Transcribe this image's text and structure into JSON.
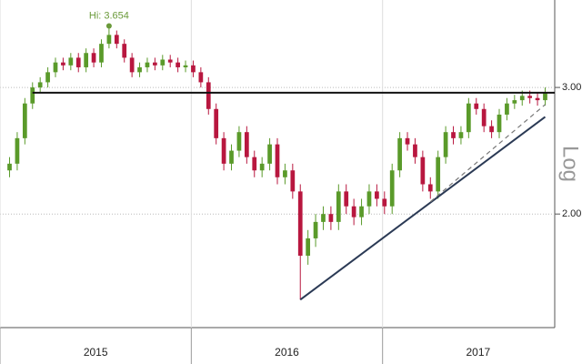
{
  "chart_data": {
    "type": "candlestick",
    "log_scale": true,
    "grid": true,
    "axis_label": "Log",
    "up_color": "#5a9a2a",
    "down_color": "#b8173f",
    "x": [
      2015.05,
      2015.09,
      2015.13,
      2015.17,
      2015.21,
      2015.25,
      2015.29,
      2015.33,
      2015.37,
      2015.41,
      2015.45,
      2015.49,
      2015.53,
      2015.57,
      2015.61,
      2015.65,
      2015.69,
      2015.73,
      2015.77,
      2015.81,
      2015.85,
      2015.89,
      2015.93,
      2015.97,
      2016.01,
      2016.05,
      2016.09,
      2016.13,
      2016.17,
      2016.21,
      2016.25,
      2016.29,
      2016.33,
      2016.37,
      2016.41,
      2016.45,
      2016.49,
      2016.53,
      2016.57,
      2016.61,
      2016.65,
      2016.69,
      2016.73,
      2016.77,
      2016.81,
      2016.85,
      2016.89,
      2016.93,
      2016.97,
      2017.01,
      2017.05,
      2017.09,
      2017.13,
      2017.17,
      2017.21,
      2017.25,
      2017.29,
      2017.33,
      2017.37,
      2017.41,
      2017.45,
      2017.49,
      2017.53,
      2017.57,
      2017.61,
      2017.65,
      2017.69,
      2017.73,
      2017.77,
      2017.81,
      2017.85
    ],
    "open": [
      2.3,
      2.35,
      2.55,
      2.85,
      3.0,
      3.05,
      3.15,
      3.25,
      3.22,
      3.3,
      3.2,
      3.35,
      3.25,
      3.45,
      3.55,
      3.45,
      3.3,
      3.15,
      3.2,
      3.25,
      3.22,
      3.28,
      3.25,
      3.2,
      3.22,
      3.15,
      3.05,
      2.8,
      2.55,
      2.35,
      2.45,
      2.6,
      2.4,
      2.3,
      2.35,
      2.5,
      2.25,
      2.3,
      2.15,
      1.75,
      1.85,
      1.95,
      2.0,
      1.95,
      2.15,
      2.05,
      1.98,
      2.05,
      2.15,
      2.1,
      2.05,
      2.3,
      2.55,
      2.5,
      2.4,
      2.2,
      2.15,
      2.4,
      2.6,
      2.55,
      2.6,
      2.85,
      2.8,
      2.65,
      2.6,
      2.75,
      2.85,
      2.88,
      2.92,
      2.9,
      2.88
    ],
    "high": [
      2.4,
      2.6,
      2.9,
      3.05,
      3.1,
      3.2,
      3.3,
      3.3,
      3.35,
      3.35,
      3.4,
      3.4,
      3.5,
      3.654,
      3.6,
      3.5,
      3.35,
      3.25,
      3.3,
      3.3,
      3.33,
      3.33,
      3.3,
      3.27,
      3.27,
      3.2,
      3.1,
      2.85,
      2.6,
      2.5,
      2.65,
      2.65,
      2.45,
      2.4,
      2.55,
      2.55,
      2.35,
      2.35,
      2.2,
      1.9,
      2.0,
      2.05,
      2.05,
      2.2,
      2.2,
      2.1,
      2.1,
      2.2,
      2.2,
      2.15,
      2.35,
      2.6,
      2.6,
      2.55,
      2.45,
      2.25,
      2.45,
      2.65,
      2.65,
      2.65,
      2.9,
      2.9,
      2.85,
      2.7,
      2.8,
      2.9,
      2.93,
      2.97,
      2.97,
      2.95,
      3.0
    ],
    "low": [
      2.25,
      2.3,
      2.5,
      2.8,
      2.95,
      3.0,
      3.1,
      3.17,
      3.17,
      3.15,
      3.15,
      3.2,
      3.2,
      3.4,
      3.4,
      3.25,
      3.1,
      3.1,
      3.15,
      3.17,
      3.17,
      3.2,
      3.15,
      3.15,
      3.1,
      3.0,
      2.75,
      2.5,
      2.3,
      2.3,
      2.4,
      2.35,
      2.25,
      2.25,
      2.3,
      2.2,
      2.2,
      2.1,
      1.52,
      1.7,
      1.8,
      1.9,
      1.9,
      1.9,
      2.0,
      1.93,
      1.93,
      2.0,
      2.05,
      2.0,
      2.0,
      2.25,
      2.45,
      2.35,
      2.15,
      2.1,
      2.1,
      2.35,
      2.5,
      2.5,
      2.55,
      2.75,
      2.6,
      2.55,
      2.55,
      2.7,
      2.8,
      2.83,
      2.85,
      2.83,
      2.83
    ],
    "close": [
      2.35,
      2.55,
      2.85,
      3.0,
      3.05,
      3.15,
      3.25,
      3.22,
      3.3,
      3.2,
      3.35,
      3.25,
      3.45,
      3.55,
      3.45,
      3.3,
      3.15,
      3.2,
      3.25,
      3.22,
      3.28,
      3.25,
      3.2,
      3.22,
      3.15,
      3.05,
      2.8,
      2.55,
      2.35,
      2.45,
      2.6,
      2.4,
      2.3,
      2.35,
      2.5,
      2.25,
      2.3,
      2.15,
      1.75,
      1.85,
      1.95,
      2.0,
      1.95,
      2.15,
      2.05,
      1.98,
      2.05,
      2.15,
      2.1,
      2.05,
      2.3,
      2.55,
      2.5,
      2.4,
      2.2,
      2.15,
      2.4,
      2.6,
      2.55,
      2.6,
      2.85,
      2.8,
      2.65,
      2.6,
      2.75,
      2.85,
      2.88,
      2.92,
      2.9,
      2.88,
      2.95
    ],
    "xlim": [
      2015.0,
      2017.9
    ],
    "xticks": [
      {
        "value": 2015.5,
        "label": "2015"
      },
      {
        "value": 2016.5,
        "label": "2016"
      },
      {
        "value": 2017.5,
        "label": "2017"
      }
    ],
    "ylim": [
      1.39,
      3.97
    ],
    "yticks": [
      {
        "value": 2,
        "label": "2.00"
      },
      {
        "value": 3,
        "label": "3.00"
      }
    ],
    "lines": [
      {
        "x": [
          2015.17,
          2017.9
        ],
        "y": [
          2.95,
          2.95
        ],
        "color": "#111111",
        "dashed": false
      },
      {
        "x": [
          2016.57,
          2017.85
        ],
        "y": [
          1.52,
          2.73
        ],
        "color": "#2b3a55",
        "dashed": false
      },
      {
        "x": [
          2017.25,
          2017.85
        ],
        "y": [
          2.08,
          2.84
        ],
        "color": "#777777",
        "dashed": true
      }
    ],
    "annotation": {
      "text": "Hi: 3.654",
      "x": 2015.57,
      "y": 3.654,
      "color": "#6a9a3a"
    }
  }
}
